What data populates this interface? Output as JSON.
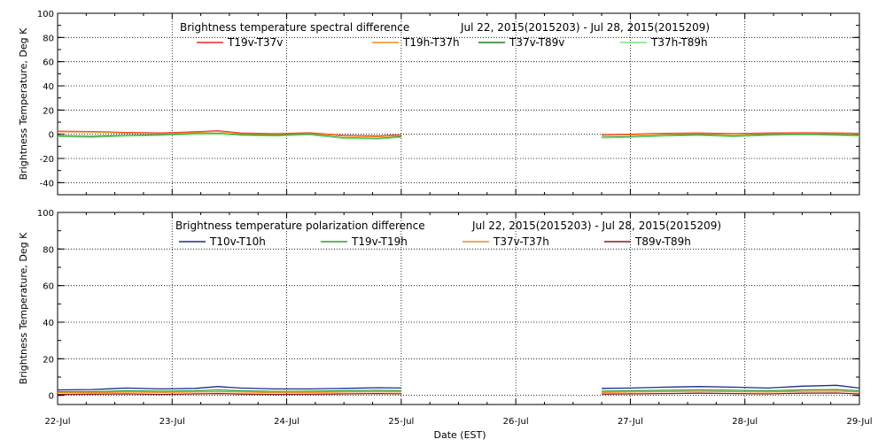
{
  "chart_data": [
    {
      "type": "line",
      "title": "Brightness temperature spectral difference",
      "date_range": "Jul 22, 2015(2015203) - Jul 28, 2015(2015209)",
      "ylabel": "Brightness Temperature, Deg K",
      "xlabel": "",
      "xlim": [
        "22-Jul",
        "29-Jul"
      ],
      "ylim": [
        -50,
        100
      ],
      "yticks": [
        "-40",
        "-20",
        "0",
        "20",
        "40",
        "60",
        "80",
        "100"
      ],
      "xticks": [
        "22-Jul",
        "23-Jul",
        "24-Jul",
        "25-Jul",
        "26-Jul",
        "27-Jul",
        "28-Jul",
        "29-Jul"
      ],
      "grid": true,
      "legend": "top",
      "series": [
        {
          "name": "T19v-T37v",
          "color": "#e8262b",
          "segments": [
            {
              "x": [
                22.0,
                22.3,
                22.6,
                22.9,
                23.2,
                23.4,
                23.6,
                23.9,
                24.2,
                24.5,
                24.8,
                25.0
              ],
              "y": [
                2.5,
                2.2,
                1.5,
                1.0,
                2.0,
                2.8,
                1.0,
                0.5,
                1.2,
                -1.0,
                -1.5,
                -0.5
              ]
            },
            {
              "x": [
                26.75,
                27.0,
                27.3,
                27.6,
                27.9,
                28.2,
                28.5,
                28.8,
                29.0
              ],
              "y": [
                -0.5,
                0.0,
                0.8,
                1.0,
                0.5,
                1.0,
                1.2,
                1.0,
                0.8
              ]
            }
          ]
        },
        {
          "name": "T19h-T37h",
          "color": "#f08c1e",
          "segments": [
            {
              "x": [
                22.0,
                22.3,
                22.6,
                22.9,
                23.2,
                23.4,
                23.6,
                23.9,
                24.2,
                24.5,
                24.8,
                25.0
              ],
              "y": [
                2.0,
                1.8,
                1.0,
                0.5,
                1.5,
                2.3,
                0.5,
                0.0,
                0.8,
                -1.5,
                -2.0,
                -1.0
              ]
            },
            {
              "x": [
                26.75,
                27.0,
                27.3,
                27.6,
                27.9,
                28.2,
                28.5,
                28.8,
                29.0
              ],
              "y": [
                -1.0,
                -0.5,
                0.3,
                0.5,
                0.0,
                0.5,
                0.8,
                0.5,
                0.3
              ]
            }
          ]
        },
        {
          "name": "T37v-T89v",
          "color": "#1e7a1e",
          "segments": [
            {
              "x": [
                22.0,
                22.3,
                22.6,
                22.9,
                23.2,
                23.4,
                23.6,
                23.9,
                24.2,
                24.5,
                24.8,
                25.0
              ],
              "y": [
                -1.5,
                -1.8,
                -1.0,
                -0.5,
                0.5,
                0.8,
                -0.5,
                -0.8,
                0.0,
                -3.0,
                -3.5,
                -2.0
              ]
            },
            {
              "x": [
                26.75,
                27.0,
                27.3,
                27.6,
                27.9,
                28.2,
                28.5,
                28.8,
                29.0
              ],
              "y": [
                -2.5,
                -2.0,
                -1.0,
                -0.5,
                -1.5,
                -0.5,
                0.0,
                -0.5,
                -1.0
              ]
            }
          ]
        },
        {
          "name": "T37h-T89h",
          "color": "#7ee07e",
          "segments": [
            {
              "x": [
                22.0,
                22.3,
                22.6,
                22.9,
                23.2,
                23.4,
                23.6,
                23.9,
                24.2,
                24.5,
                24.8,
                25.0
              ],
              "y": [
                -2.0,
                -2.5,
                -1.5,
                -1.0,
                0.0,
                0.3,
                -1.0,
                -1.5,
                -0.5,
                -3.5,
                -4.0,
                -2.5
              ]
            },
            {
              "x": [
                26.75,
                27.0,
                27.3,
                27.6,
                27.9,
                28.2,
                28.5,
                28.8,
                29.0
              ],
              "y": [
                -3.0,
                -2.5,
                -1.5,
                -1.0,
                -2.0,
                -1.0,
                -0.5,
                -1.0,
                -1.5
              ]
            }
          ]
        }
      ]
    },
    {
      "type": "line",
      "title": "Brightness temperature polarization difference",
      "date_range": "Jul 22, 2015(2015203) - Jul 28, 2015(2015209)",
      "ylabel": "Brightness Temperature, Deg K",
      "xlabel": "Date (EST)",
      "xlim": [
        "22-Jul",
        "29-Jul"
      ],
      "ylim": [
        -5,
        100
      ],
      "yticks": [
        "0",
        "20",
        "40",
        "60",
        "80",
        "100"
      ],
      "xticks": [
        "22-Jul",
        "23-Jul",
        "24-Jul",
        "25-Jul",
        "26-Jul",
        "27-Jul",
        "28-Jul",
        "29-Jul"
      ],
      "grid": true,
      "legend": "top",
      "series": [
        {
          "name": "T10v-T10h",
          "color": "#1f2a8f",
          "segments": [
            {
              "x": [
                22.0,
                22.3,
                22.6,
                22.9,
                23.2,
                23.4,
                23.6,
                23.9,
                24.2,
                24.5,
                24.8,
                25.0
              ],
              "y": [
                3.0,
                3.2,
                4.0,
                3.5,
                3.8,
                4.8,
                4.0,
                3.5,
                3.5,
                3.8,
                4.2,
                4.0
              ]
            },
            {
              "x": [
                26.75,
                27.0,
                27.3,
                27.6,
                27.9,
                28.2,
                28.5,
                28.8,
                29.0
              ],
              "y": [
                3.8,
                4.0,
                4.5,
                4.8,
                4.5,
                4.0,
                5.0,
                5.5,
                4.0
              ]
            }
          ]
        },
        {
          "name": "T19v-T19h",
          "color": "#2e9e2e",
          "segments": [
            {
              "x": [
                22.0,
                22.3,
                22.6,
                22.9,
                23.2,
                23.4,
                23.6,
                23.9,
                24.2,
                24.5,
                24.8,
                25.0
              ],
              "y": [
                2.0,
                2.0,
                2.5,
                2.3,
                2.5,
                3.0,
                2.5,
                2.2,
                2.3,
                2.5,
                2.8,
                2.5
              ]
            },
            {
              "x": [
                26.75,
                27.0,
                27.3,
                27.6,
                27.9,
                28.2,
                28.5,
                28.8,
                29.0
              ],
              "y": [
                2.3,
                2.5,
                2.8,
                3.0,
                2.8,
                2.5,
                3.0,
                3.2,
                2.5
              ]
            }
          ]
        },
        {
          "name": "T37v-T37h",
          "color": "#f08c1e",
          "segments": [
            {
              "x": [
                22.0,
                22.3,
                22.6,
                22.9,
                23.2,
                23.4,
                23.6,
                23.9,
                24.2,
                24.5,
                24.8,
                25.0
              ],
              "y": [
                1.5,
                1.5,
                1.8,
                1.6,
                1.8,
                2.0,
                1.8,
                1.5,
                1.6,
                1.8,
                2.0,
                1.8
              ]
            },
            {
              "x": [
                26.75,
                27.0,
                27.3,
                27.6,
                27.9,
                28.2,
                28.5,
                28.8,
                29.0
              ],
              "y": [
                1.6,
                1.8,
                2.0,
                2.2,
                2.0,
                1.8,
                2.2,
                2.3,
                1.8
              ]
            }
          ]
        },
        {
          "name": "T89v-T89h",
          "color": "#8b1a1a",
          "segments": [
            {
              "x": [
                22.0,
                22.3,
                22.6,
                22.9,
                23.2,
                23.4,
                23.6,
                23.9,
                24.2,
                24.5,
                24.8,
                25.0
              ],
              "y": [
                0.5,
                0.6,
                0.8,
                0.5,
                0.8,
                1.0,
                0.7,
                0.5,
                0.6,
                0.8,
                1.0,
                0.8
              ]
            },
            {
              "x": [
                26.75,
                27.0,
                27.3,
                27.6,
                27.9,
                28.2,
                28.5,
                28.8,
                29.0
              ],
              "y": [
                0.7,
                0.8,
                1.0,
                1.2,
                1.0,
                0.8,
                1.2,
                1.3,
                0.8
              ]
            }
          ]
        }
      ]
    }
  ]
}
